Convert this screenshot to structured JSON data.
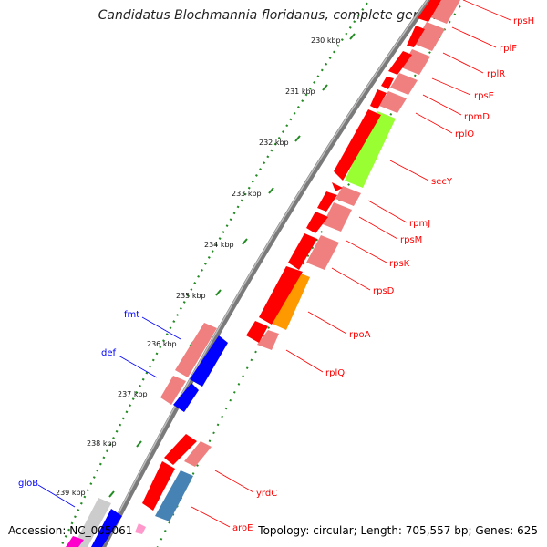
{
  "title": "Candidatus Blochmannia floridanus, complete genome",
  "footer": {
    "accession": "Accession: NC_005061",
    "summary": "Topology: circular; Length: 705,557 bp; Genes: 625"
  },
  "colors": {
    "red": "#ff0000",
    "pink": "#f08080",
    "blue": "#0000ff",
    "green": "#99ff33",
    "orange": "#ff9900",
    "steel": "#4682b4",
    "gray": "#cccccc",
    "magenta": "#ff00cc",
    "backbone": "#7a7a7a",
    "ruler": "#228b22"
  },
  "ticks": [
    {
      "label": "230 kbp"
    },
    {
      "label": "231 kbp"
    },
    {
      "label": "232 kbp"
    },
    {
      "label": "233 kbp"
    },
    {
      "label": "234 kbp"
    },
    {
      "label": "235 kbp"
    },
    {
      "label": "236 kbp"
    },
    {
      "label": "237 kbp"
    },
    {
      "label": "238 kbp"
    },
    {
      "label": "239 kbp"
    }
  ],
  "genes": [
    {
      "name": "rpsH",
      "color": "red"
    },
    {
      "name": "rplF",
      "color": "red"
    },
    {
      "name": "rplR",
      "color": "red"
    },
    {
      "name": "rpsE",
      "color": "red"
    },
    {
      "name": "rpmD",
      "color": "red"
    },
    {
      "name": "rplO",
      "color": "red"
    },
    {
      "name": "secY",
      "color": "red"
    },
    {
      "name": "rpmJ",
      "color": "red"
    },
    {
      "name": "rpsM",
      "color": "red"
    },
    {
      "name": "rpsK",
      "color": "red"
    },
    {
      "name": "rpsD",
      "color": "red"
    },
    {
      "name": "rpoA",
      "color": "red"
    },
    {
      "name": "rplQ",
      "color": "red"
    },
    {
      "name": "yrdC",
      "color": "red"
    },
    {
      "name": "aroE",
      "color": "red"
    },
    {
      "name": "fmt",
      "color": "blue"
    },
    {
      "name": "def",
      "color": "blue"
    },
    {
      "name": "gloB",
      "color": "blue"
    }
  ]
}
